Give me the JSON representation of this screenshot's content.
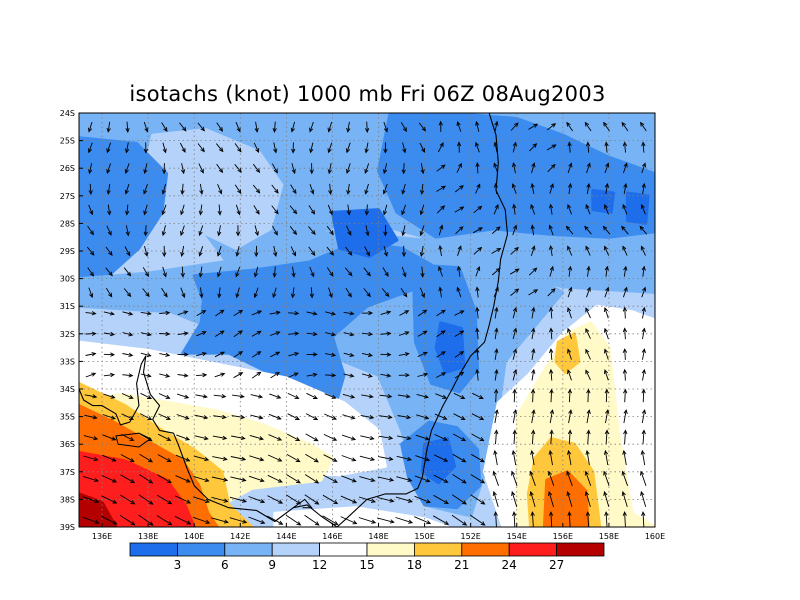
{
  "title": "isotachs (knot) 1000 mb Fri 06Z 08Aug2003",
  "colors": {
    "bins": [
      "#1e6eeb",
      "#3c8cf0",
      "#78b4f5",
      "#b4d2fa",
      "#ffffff",
      "#fffac8",
      "#ffc83c",
      "#ff6e00",
      "#ff1e1e",
      "#b40000"
    ],
    "grid": "#7f7f7f",
    "coast": "#000000",
    "arrow": "#000000"
  },
  "map": {
    "lat_labels": [
      "24S",
      "25S",
      "26S",
      "27S",
      "28S",
      "29S",
      "30S",
      "31S",
      "32S",
      "33S",
      "34S",
      "35S",
      "36S",
      "37S",
      "38S",
      "39S"
    ],
    "lon_labels": [
      "136E",
      "138E",
      "140E",
      "142E",
      "144E",
      "146E",
      "148E",
      "150E",
      "152E",
      "154E",
      "156E",
      "158E",
      "160E"
    ],
    "lon_range": [
      135,
      160
    ],
    "lat_range": [
      -39,
      -24
    ]
  },
  "colorbar": {
    "labels": [
      "3",
      "6",
      "9",
      "12",
      "15",
      "18",
      "21",
      "24",
      "27"
    ]
  }
}
